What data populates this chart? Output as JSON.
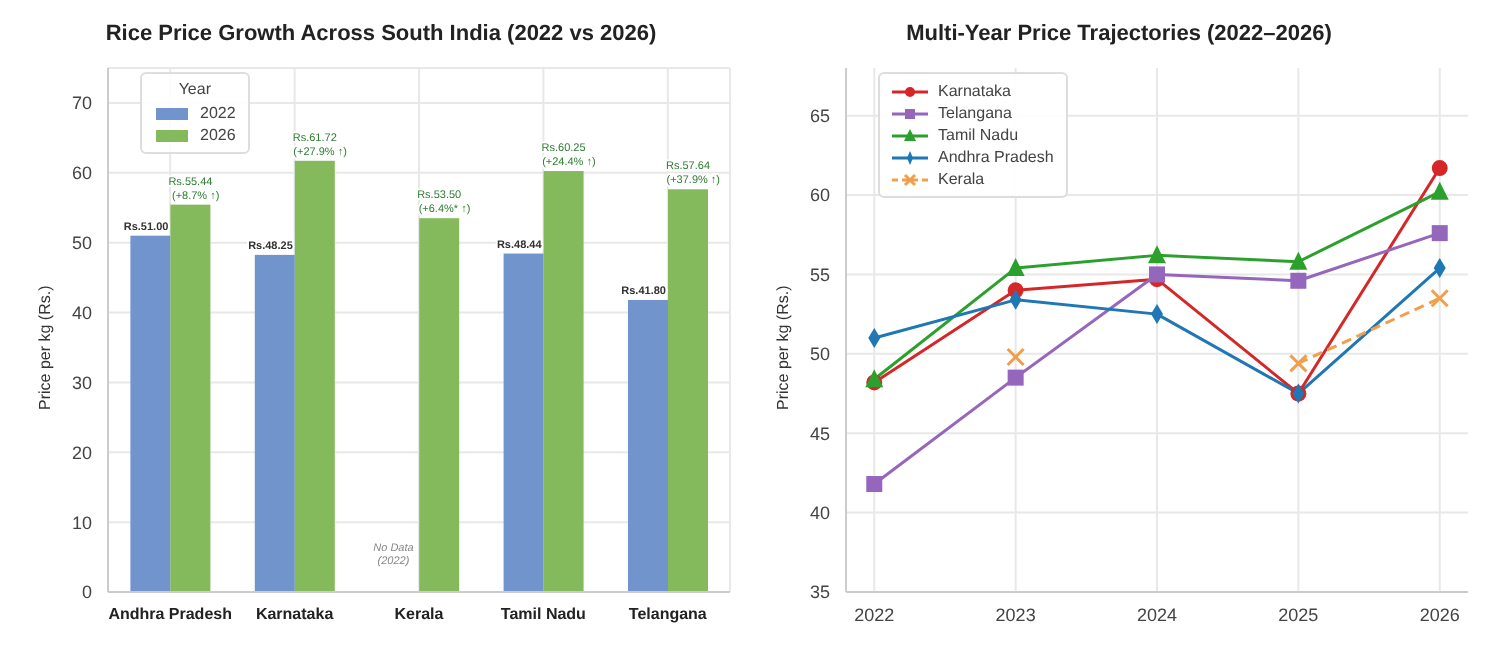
{
  "chart_data": [
    {
      "type": "bar",
      "title": "Rice Price Growth Across South India (2022 vs 2026)",
      "ylabel": "Price per kg (Rs.)",
      "categories": [
        "Andhra Pradesh",
        "Karnataka",
        "Kerala",
        "Tamil Nadu",
        "Telangana"
      ],
      "series": [
        {
          "name": "2022",
          "color": "#7294cc",
          "values": [
            51.0,
            48.25,
            null,
            48.44,
            41.8
          ],
          "value_labels": [
            "Rs.51.00",
            "Rs.48.25",
            null,
            "Rs.48.44",
            "Rs.41.80"
          ]
        },
        {
          "name": "2026",
          "color": "#84ba5b",
          "values": [
            55.44,
            61.72,
            53.5,
            60.25,
            57.64
          ],
          "value_labels": [
            "Rs.55.44",
            "Rs.61.72",
            "Rs.53.50",
            "Rs.60.25",
            "Rs.57.64"
          ]
        }
      ],
      "ylim": [
        0,
        75
      ],
      "yticks": [
        0,
        10,
        20,
        30,
        40,
        50,
        60,
        70
      ],
      "grid": true,
      "legend": "top left",
      "legend_title": "Year",
      "annotations": [
        {
          "text": "No Data\n(2022)",
          "x": "Kerala",
          "y": 4
        },
        {
          "text": "(+8.7% ↑)",
          "x": "Andhra Pradesh",
          "y": 55.44
        },
        {
          "text": "(+27.9% ↑)",
          "x": "Karnataka",
          "y": 61.72
        },
        {
          "text": "(+6.4%* ↑)",
          "x": "Kerala",
          "y": 53.5
        },
        {
          "text": "(+24.4% ↑)",
          "x": "Tamil Nadu",
          "y": 60.25
        },
        {
          "text": "(+37.9% ↑)",
          "x": "Telangana",
          "y": 57.64
        }
      ]
    },
    {
      "type": "line",
      "title": "Multi-Year Price Trajectories (2022–2026)",
      "ylabel": "Price per kg (Rs.)",
      "x": [
        2022,
        2023,
        2024,
        2025,
        2026
      ],
      "series": [
        {
          "name": "Karnataka",
          "color": "#d62728",
          "marker": "circle",
          "values": [
            48.2,
            54.0,
            54.7,
            47.5,
            61.7
          ]
        },
        {
          "name": "Telangana",
          "color": "#9467bd",
          "marker": "square",
          "values": [
            41.8,
            48.5,
            55.0,
            54.6,
            57.6
          ]
        },
        {
          "name": "Tamil Nadu",
          "color": "#2ca02c",
          "marker": "triangle",
          "values": [
            48.4,
            55.4,
            56.2,
            55.8,
            60.2
          ]
        },
        {
          "name": "Andhra Pradesh",
          "color": "#1f77b4",
          "marker": "diamond",
          "values": [
            51.0,
            53.4,
            52.5,
            47.5,
            55.4
          ]
        },
        {
          "name": "Kerala",
          "color": "#f0a04b",
          "marker": "cross",
          "line_style": "dashed",
          "values": [
            null,
            49.8,
            null,
            49.4,
            53.5
          ]
        }
      ],
      "xlim": [
        2021.8,
        2026.2
      ],
      "xticks": [
        2022,
        2023,
        2024,
        2025,
        2026
      ],
      "ylim": [
        35,
        68
      ],
      "yticks": [
        35,
        40,
        45,
        50,
        55,
        60,
        65
      ],
      "grid": true,
      "legend": "top left"
    }
  ]
}
